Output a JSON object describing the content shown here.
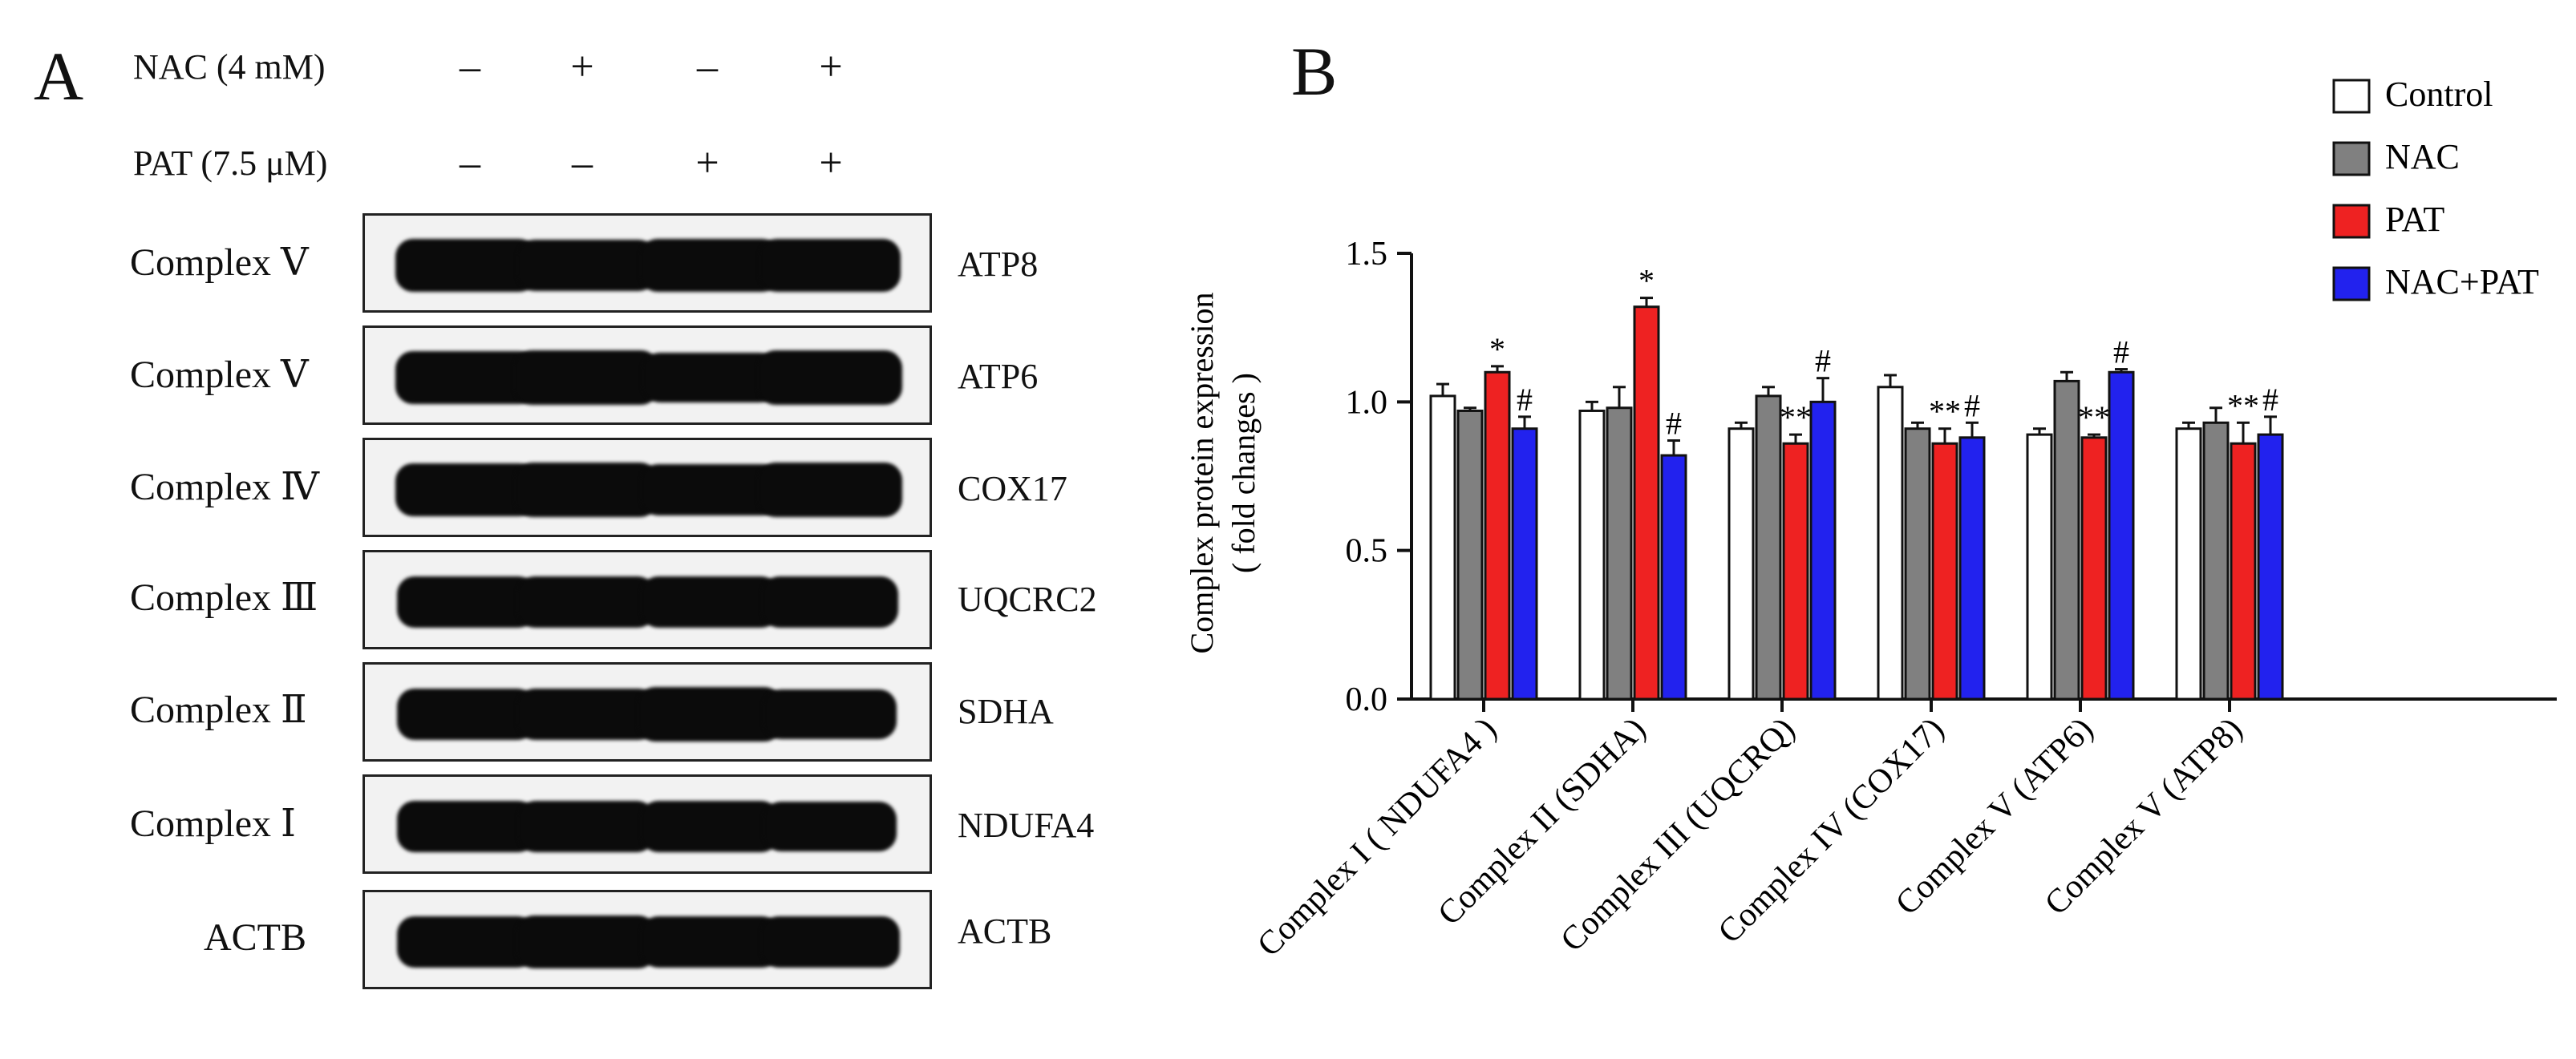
{
  "panel_a": {
    "letter": "A",
    "treatments": [
      {
        "label": "NAC (4 mM)",
        "signs": [
          "–",
          "+",
          "–",
          "+"
        ]
      },
      {
        "label": "PAT (7.5 μM)",
        "signs": [
          "–",
          "–",
          "+",
          "+"
        ]
      }
    ],
    "blots": [
      {
        "complex": "Complex Ⅴ",
        "protein": "ATP8",
        "intensity": [
          0.95,
          0.9,
          0.92,
          0.95
        ]
      },
      {
        "complex": "Complex Ⅴ",
        "protein": "ATP6",
        "intensity": [
          0.95,
          1.0,
          0.82,
          1.0
        ]
      },
      {
        "complex": "Complex Ⅳ",
        "protein": "COX17",
        "intensity": [
          0.95,
          0.98,
          0.9,
          1.0
        ]
      },
      {
        "complex": "Complex Ⅲ",
        "protein": "UQCRC2",
        "intensity": [
          0.9,
          0.88,
          0.88,
          0.86
        ]
      },
      {
        "complex": "Complex Ⅱ",
        "protein": "SDHA",
        "intensity": [
          0.88,
          0.9,
          1.0,
          0.8
        ]
      },
      {
        "complex": "Complex Ⅰ",
        "protein": "NDUFA4",
        "intensity": [
          0.9,
          0.86,
          0.88,
          0.8
        ]
      },
      {
        "complex": "ACTB",
        "protein": "ACTB",
        "intensity": [
          0.88,
          0.92,
          0.9,
          0.9
        ]
      }
    ]
  },
  "panel_b": {
    "letter": "B"
  },
  "chart_data": {
    "type": "bar",
    "ylabel": "Complex  protein expression",
    "ylabel2": "( fold changes )",
    "ylim": [
      0,
      1.5
    ],
    "yticks": [
      "0.0",
      "0.5",
      "1.0",
      "1.5"
    ],
    "ytick_values": [
      0,
      0.5,
      1.0,
      1.5
    ],
    "categories": [
      "Complex I ( NDUFA4 )",
      "Complex II (SDHA)",
      "Complex III (UQCRQ)",
      "Complex IV (COX17)",
      "Complex V (ATP6)",
      "Complex V (ATP8)"
    ],
    "legend_position": "top-right",
    "series": [
      {
        "name": "Control",
        "color": "#ffffff",
        "values": [
          1.02,
          0.97,
          0.91,
          1.05,
          0.89,
          0.91
        ],
        "errors": [
          0.04,
          0.03,
          0.02,
          0.04,
          0.02,
          0.02
        ],
        "marks": [
          "",
          "",
          "",
          "",
          "",
          ""
        ]
      },
      {
        "name": "NAC",
        "color": "#808080",
        "values": [
          0.97,
          0.98,
          1.02,
          0.91,
          1.07,
          0.93
        ],
        "errors": [
          0.01,
          0.07,
          0.03,
          0.02,
          0.03,
          0.05
        ],
        "marks": [
          "",
          "",
          "",
          "",
          "",
          ""
        ]
      },
      {
        "name": "PAT",
        "color": "#ee2222",
        "values": [
          1.1,
          1.32,
          0.86,
          0.86,
          0.88,
          0.86
        ],
        "errors": [
          0.02,
          0.03,
          0.03,
          0.05,
          0.01,
          0.07
        ],
        "marks": [
          "*",
          "*",
          "**",
          "**",
          "**",
          "**"
        ]
      },
      {
        "name": "NAC+PAT",
        "color": "#2222ee",
        "values": [
          0.91,
          0.82,
          1.0,
          0.88,
          1.1,
          0.89
        ],
        "errors": [
          0.04,
          0.05,
          0.08,
          0.05,
          0.01,
          0.06
        ],
        "marks": [
          "#",
          "#",
          "#",
          "#",
          "#",
          "#"
        ]
      }
    ]
  }
}
